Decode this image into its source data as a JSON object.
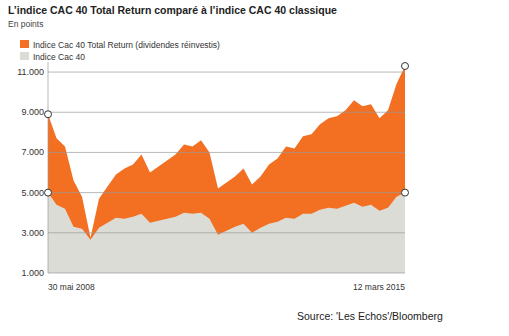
{
  "chart_data": {
    "type": "area",
    "title": "L’indice CAC 40 Total Return comparé à l’indice CAC 40 classique",
    "subtitle": "En points",
    "source": "Source: 'Les Echos'/Bloomberg",
    "categories": [
      "30 mai 2008",
      null,
      null,
      null,
      null,
      null,
      null,
      null,
      null,
      null,
      null,
      null,
      null,
      null,
      null,
      null,
      null,
      null,
      null,
      null,
      null,
      null,
      null,
      null,
      null,
      null,
      null,
      null,
      null,
      null,
      null,
      null,
      null,
      null,
      null,
      null,
      null,
      null,
      null,
      null,
      null,
      null,
      "12 mars 2015"
    ],
    "series": [
      {
        "name": "Indice Cac 40 Total Return (dividendes réinvestis)",
        "color": "#f36f21",
        "values": [
          8900,
          7700,
          7300,
          5600,
          4800,
          2750,
          4700,
          5300,
          5900,
          6200,
          6400,
          6900,
          6000,
          6300,
          6600,
          6900,
          7400,
          7300,
          7600,
          7000,
          5200,
          5500,
          5800,
          6200,
          5400,
          5800,
          6400,
          6700,
          7300,
          7200,
          7800,
          7900,
          8400,
          8700,
          8800,
          9100,
          9600,
          9300,
          9400,
          8700,
          9100,
          10400,
          11300
        ]
      },
      {
        "name": "Indice Cac 40",
        "color": "#dcdcd7",
        "values": [
          5000,
          4400,
          4200,
          3300,
          3200,
          2650,
          3250,
          3500,
          3750,
          3700,
          3800,
          3950,
          3500,
          3600,
          3700,
          3800,
          4000,
          3950,
          4000,
          3700,
          2900,
          3100,
          3300,
          3450,
          3000,
          3250,
          3450,
          3550,
          3750,
          3700,
          3950,
          3950,
          4150,
          4250,
          4200,
          4350,
          4500,
          4300,
          4400,
          4100,
          4250,
          4800,
          5000
        ]
      }
    ],
    "ylim": [
      1000,
      11500
    ],
    "yticks": [
      {
        "value": 1000,
        "label": "1.000"
      },
      {
        "value": 3000,
        "label": "3.000"
      },
      {
        "value": 5000,
        "label": "5.000"
      },
      {
        "value": 7000,
        "label": "7.000"
      },
      {
        "value": 9000,
        "label": "9.000"
      },
      {
        "value": 11000,
        "label": "11.000"
      }
    ],
    "grid": true,
    "legend": "top-left",
    "stacked": false
  }
}
